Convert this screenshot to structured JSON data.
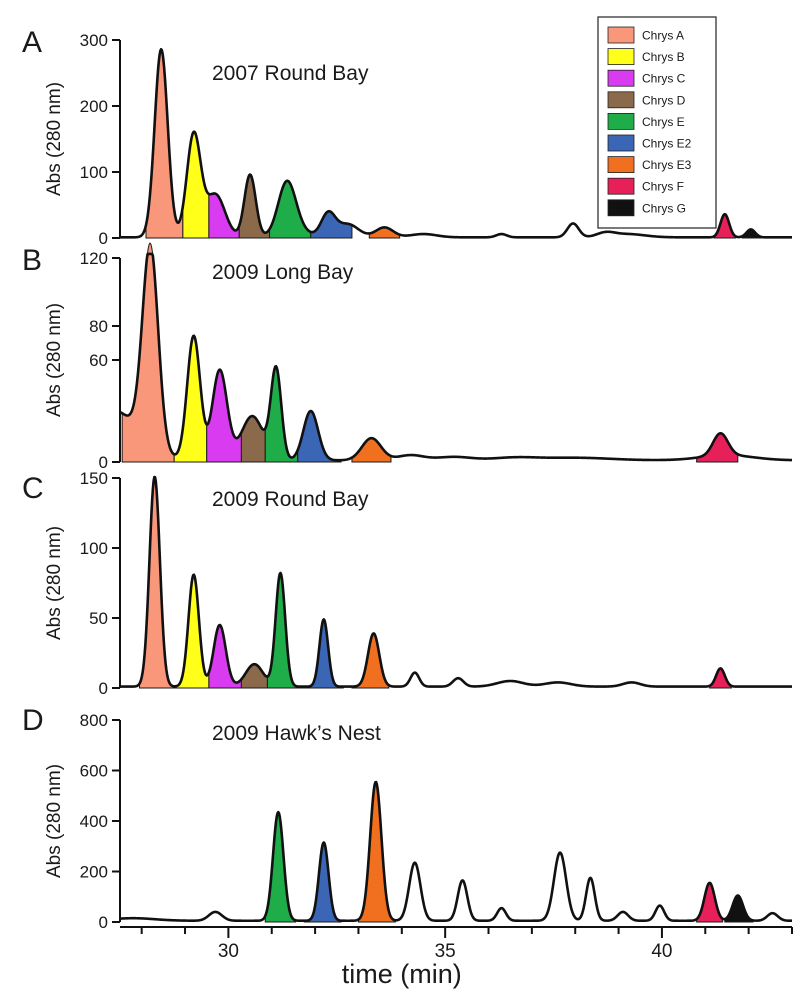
{
  "chart_data": {
    "type": "line",
    "description_units": "time (min) vs absorbance at 280 nm",
    "xlabel": "time (min)",
    "xlim": [
      27.5,
      43
    ],
    "xticks": [
      30,
      35,
      40
    ],
    "legend": {
      "placement": "top-right",
      "entries": [
        {
          "name": "Chrys A",
          "color": "#f9977a"
        },
        {
          "name": "Chrys B",
          "color": "#ffff1a"
        },
        {
          "name": "Chrys C",
          "color": "#d93cf0"
        },
        {
          "name": "Chrys D",
          "color": "#8a6a4a"
        },
        {
          "name": "Chrys E",
          "color": "#1fad4a"
        },
        {
          "name": "Chrys E2",
          "color": "#3a66b5"
        },
        {
          "name": "Chrys E3",
          "color": "#f07020"
        },
        {
          "name": "Chrys F",
          "color": "#e8205a"
        },
        {
          "name": "Chrys G",
          "color": "#111111"
        }
      ]
    },
    "panels": [
      {
        "letter": "A",
        "title": "2007 Round Bay",
        "ylabel": "Abs (280 nm)",
        "ylim": [
          0,
          300
        ],
        "yticks": [
          0,
          100,
          200,
          300
        ],
        "baseline": 1,
        "peaks": [
          {
            "t": 28.45,
            "h": 285,
            "w": 0.15
          },
          {
            "t": 29.2,
            "h": 155,
            "w": 0.16
          },
          {
            "t": 29.7,
            "h": 65,
            "w": 0.22
          },
          {
            "t": 30.5,
            "h": 95,
            "w": 0.13
          },
          {
            "t": 31.35,
            "h": 75,
            "w": 0.2
          },
          {
            "t": 31.5,
            "h": 12,
            "w": 0.3
          },
          {
            "t": 32.3,
            "h": 35,
            "w": 0.16
          },
          {
            "t": 32.75,
            "h": 20,
            "w": 0.25
          },
          {
            "t": 33.6,
            "h": 15,
            "w": 0.2
          },
          {
            "t": 34.5,
            "h": 5,
            "w": 0.3
          },
          {
            "t": 36.3,
            "h": 5,
            "w": 0.12
          },
          {
            "t": 37.95,
            "h": 21,
            "w": 0.13
          },
          {
            "t": 38.7,
            "h": 6,
            "w": 0.2
          },
          {
            "t": 39.2,
            "h": 5,
            "w": 0.4
          },
          {
            "t": 41.45,
            "h": 35,
            "w": 0.1
          },
          {
            "t": 42.05,
            "h": 12,
            "w": 0.1
          }
        ],
        "fills": [
          {
            "compound": "Chrys A",
            "from": 28.1,
            "to": 28.95
          },
          {
            "compound": "Chrys B",
            "from": 28.95,
            "to": 29.55
          },
          {
            "compound": "Chrys C",
            "from": 29.55,
            "to": 30.25
          },
          {
            "compound": "Chrys D",
            "from": 30.25,
            "to": 30.95
          },
          {
            "compound": "Chrys E",
            "from": 30.95,
            "to": 31.9
          },
          {
            "compound": "Chrys E2",
            "from": 31.9,
            "to": 32.85
          },
          {
            "compound": "Chrys E3",
            "from": 33.25,
            "to": 33.95
          },
          {
            "compound": "Chrys F",
            "from": 41.2,
            "to": 41.7
          },
          {
            "compound": "Chrys G",
            "from": 41.85,
            "to": 42.3
          }
        ]
      },
      {
        "letter": "B",
        "title": "2009 Long Bay",
        "ylabel": "Abs (280 nm)",
        "ylim": [
          0,
          120
        ],
        "yticks": [
          0,
          60,
          80,
          120
        ],
        "baseline": 1,
        "peaks": [
          {
            "t": 27.3,
            "h": 30,
            "w": 0.6
          },
          {
            "t": 28.2,
            "h": 118,
            "w": 0.18
          },
          {
            "t": 29.2,
            "h": 73,
            "w": 0.15
          },
          {
            "t": 29.8,
            "h": 53,
            "w": 0.17
          },
          {
            "t": 30.55,
            "h": 26,
            "w": 0.25
          },
          {
            "t": 31.1,
            "h": 53,
            "w": 0.12
          },
          {
            "t": 31.9,
            "h": 29,
            "w": 0.17
          },
          {
            "t": 33.3,
            "h": 13,
            "w": 0.22
          },
          {
            "t": 34.2,
            "h": 3,
            "w": 0.3
          },
          {
            "t": 35.2,
            "h": 2,
            "w": 0.4
          },
          {
            "t": 36.6,
            "h": 1.5,
            "w": 0.5
          },
          {
            "t": 41.35,
            "h": 13,
            "w": 0.17
          },
          {
            "t": 41.5,
            "h": 3,
            "w": 0.6
          },
          {
            "t": 38,
            "h": 1.5,
            "w": 0.8
          }
        ],
        "fills": [
          {
            "compound": "Chrys A",
            "from": 27.55,
            "to": 28.75
          },
          {
            "compound": "Chrys B",
            "from": 28.75,
            "to": 29.5
          },
          {
            "compound": "Chrys C",
            "from": 29.5,
            "to": 30.3
          },
          {
            "compound": "Chrys D",
            "from": 30.3,
            "to": 30.85
          },
          {
            "compound": "Chrys E",
            "from": 30.85,
            "to": 31.6
          },
          {
            "compound": "Chrys E2",
            "from": 31.6,
            "to": 32.6
          },
          {
            "compound": "Chrys E3",
            "from": 32.85,
            "to": 33.75
          },
          {
            "compound": "Chrys F",
            "from": 40.8,
            "to": 41.75
          }
        ]
      },
      {
        "letter": "C",
        "title": "2009 Round Bay",
        "ylabel": "Abs (280 nm)",
        "ylim": [
          0,
          150
        ],
        "yticks": [
          0,
          50,
          100,
          150
        ],
        "baseline": 1,
        "peaks": [
          {
            "t": 28.3,
            "h": 150,
            "w": 0.12
          },
          {
            "t": 29.2,
            "h": 80,
            "w": 0.12
          },
          {
            "t": 29.8,
            "h": 44,
            "w": 0.14
          },
          {
            "t": 30.6,
            "h": 16,
            "w": 0.2
          },
          {
            "t": 31.2,
            "h": 81,
            "w": 0.11
          },
          {
            "t": 32.2,
            "h": 48,
            "w": 0.1
          },
          {
            "t": 33.35,
            "h": 38,
            "w": 0.13
          },
          {
            "t": 34.3,
            "h": 10,
            "w": 0.1
          },
          {
            "t": 35.3,
            "h": 6,
            "w": 0.12
          },
          {
            "t": 36.5,
            "h": 4,
            "w": 0.3
          },
          {
            "t": 37.6,
            "h": 3,
            "w": 0.3
          },
          {
            "t": 39.3,
            "h": 3,
            "w": 0.2
          },
          {
            "t": 41.35,
            "h": 13,
            "w": 0.1
          }
        ],
        "fills": [
          {
            "compound": "Chrys A",
            "from": 27.95,
            "to": 28.75
          },
          {
            "compound": "Chrys B",
            "from": 28.75,
            "to": 29.55
          },
          {
            "compound": "Chrys C",
            "from": 29.55,
            "to": 30.3
          },
          {
            "compound": "Chrys D",
            "from": 30.3,
            "to": 30.9
          },
          {
            "compound": "Chrys E",
            "from": 30.9,
            "to": 31.75
          },
          {
            "compound": "Chrys E2",
            "from": 31.75,
            "to": 32.65
          },
          {
            "compound": "Chrys E3",
            "from": 32.85,
            "to": 33.7
          },
          {
            "compound": "Chrys F",
            "from": 41.1,
            "to": 41.6
          }
        ]
      },
      {
        "letter": "D",
        "title": "2009 Hawk’s Nest",
        "ylabel": "Abs (280 nm)",
        "ylim": [
          0,
          800
        ],
        "yticks": [
          0,
          200,
          400,
          600,
          800
        ],
        "baseline": 5,
        "peaks": [
          {
            "t": 27.8,
            "h": 10,
            "w": 0.5
          },
          {
            "t": 29.7,
            "h": 35,
            "w": 0.15
          },
          {
            "t": 31.15,
            "h": 430,
            "w": 0.12
          },
          {
            "t": 32.2,
            "h": 310,
            "w": 0.11
          },
          {
            "t": 33.4,
            "h": 550,
            "w": 0.13
          },
          {
            "t": 34.3,
            "h": 230,
            "w": 0.13
          },
          {
            "t": 35.4,
            "h": 160,
            "w": 0.11
          },
          {
            "t": 36.3,
            "h": 50,
            "w": 0.1
          },
          {
            "t": 37.65,
            "h": 270,
            "w": 0.14
          },
          {
            "t": 38.35,
            "h": 170,
            "w": 0.1
          },
          {
            "t": 39.1,
            "h": 35,
            "w": 0.12
          },
          {
            "t": 39.95,
            "h": 60,
            "w": 0.1
          },
          {
            "t": 41.1,
            "h": 150,
            "w": 0.12
          },
          {
            "t": 41.75,
            "h": 100,
            "w": 0.12
          },
          {
            "t": 42.55,
            "h": 30,
            "w": 0.12
          }
        ],
        "fills": [
          {
            "compound": "Chrys E",
            "from": 30.85,
            "to": 31.55
          },
          {
            "compound": "Chrys E2",
            "from": 31.75,
            "to": 32.6
          },
          {
            "compound": "Chrys E3",
            "from": 33.0,
            "to": 33.85
          },
          {
            "compound": "Chrys F",
            "from": 40.8,
            "to": 41.4
          },
          {
            "compound": "Chrys G",
            "from": 41.45,
            "to": 42.1
          }
        ]
      }
    ]
  }
}
